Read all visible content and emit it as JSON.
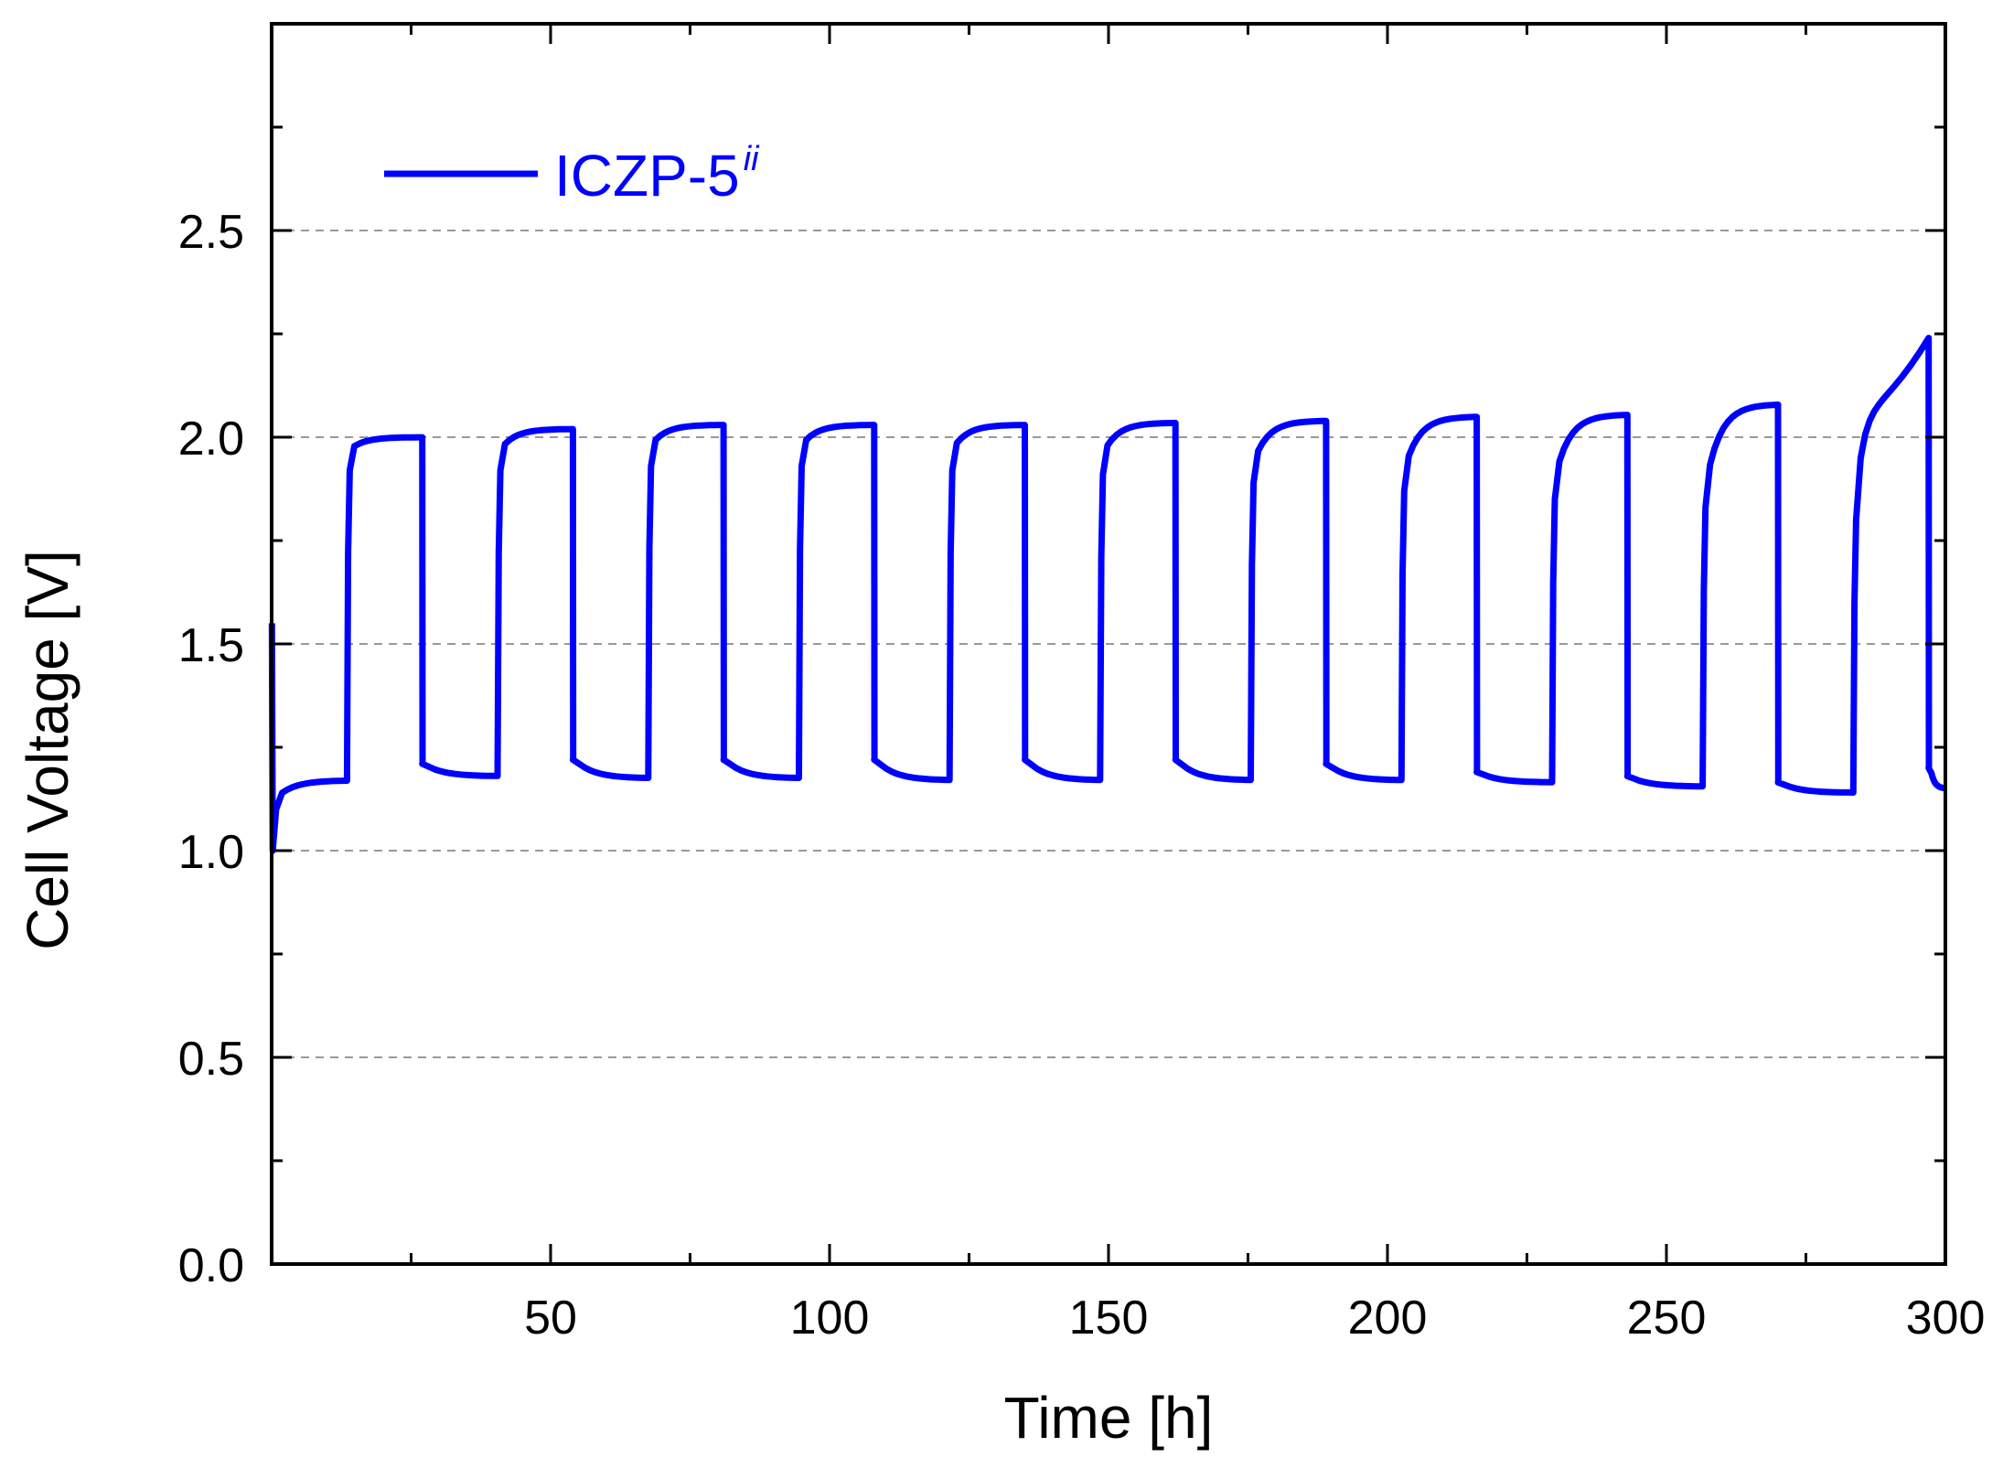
{
  "chart_data": {
    "type": "line",
    "title": "",
    "xlabel": "Time [h]",
    "ylabel": "Cell Voltage [V]",
    "xlim": [
      0,
      300
    ],
    "ylim": [
      0,
      3.0
    ],
    "x_ticks": [
      50,
      100,
      150,
      200,
      250,
      300
    ],
    "x_tick_labels": [
      "50",
      "100",
      "150",
      "200",
      "250",
      "300"
    ],
    "y_ticks": [
      0.0,
      0.5,
      1.0,
      1.5,
      2.0,
      2.5
    ],
    "y_tick_labels": [
      "0.0",
      "0.5",
      "1.0",
      "1.5",
      "2.0",
      "2.5"
    ],
    "grid": {
      "y_dashed": [
        0.5,
        1.0,
        1.5,
        2.0,
        2.5
      ]
    },
    "legend_position": "top-left",
    "series": [
      {
        "name": "ICZP-5",
        "name_superscript": "ii",
        "color": "#0000ff",
        "cycles": [
          {
            "t_start": 0,
            "t_charge": 13.5,
            "t_end": 27,
            "v_discharge_start": 1.55,
            "v_discharge_end": 1.17,
            "v_charge_start": 1.97,
            "v_charge_end": 2.0
          },
          {
            "t_start": 27,
            "t_charge": 40.5,
            "t_end": 54,
            "v_discharge_start": 1.21,
            "v_discharge_end": 1.18,
            "v_charge_start": 1.97,
            "v_charge_end": 2.02
          },
          {
            "t_start": 54,
            "t_charge": 67.5,
            "t_end": 81,
            "v_discharge_start": 1.22,
            "v_discharge_end": 1.175,
            "v_charge_start": 1.98,
            "v_charge_end": 2.03
          },
          {
            "t_start": 81,
            "t_charge": 94.5,
            "t_end": 108,
            "v_discharge_start": 1.22,
            "v_discharge_end": 1.175,
            "v_charge_start": 1.98,
            "v_charge_end": 2.03
          },
          {
            "t_start": 108,
            "t_charge": 121.5,
            "t_end": 135,
            "v_discharge_start": 1.22,
            "v_discharge_end": 1.17,
            "v_charge_start": 1.97,
            "v_charge_end": 2.03
          },
          {
            "t_start": 135,
            "t_charge": 148.5,
            "t_end": 162,
            "v_discharge_start": 1.22,
            "v_discharge_end": 1.17,
            "v_charge_start": 1.96,
            "v_charge_end": 2.035
          },
          {
            "t_start": 162,
            "t_charge": 175.5,
            "t_end": 189,
            "v_discharge_start": 1.22,
            "v_discharge_end": 1.17,
            "v_charge_start": 1.94,
            "v_charge_end": 2.04
          },
          {
            "t_start": 189,
            "t_charge": 202.5,
            "t_end": 216,
            "v_discharge_start": 1.21,
            "v_discharge_end": 1.17,
            "v_charge_start": 1.92,
            "v_charge_end": 2.05
          },
          {
            "t_start": 216,
            "t_charge": 229.5,
            "t_end": 243,
            "v_discharge_start": 1.19,
            "v_discharge_end": 1.165,
            "v_charge_start": 1.9,
            "v_charge_end": 2.055
          },
          {
            "t_start": 243,
            "t_charge": 256.5,
            "t_end": 270,
            "v_discharge_start": 1.18,
            "v_discharge_end": 1.155,
            "v_charge_start": 1.88,
            "v_charge_end": 2.08
          },
          {
            "t_start": 270,
            "t_charge": 283.5,
            "t_end": 297,
            "v_discharge_start": 1.165,
            "v_discharge_end": 1.14,
            "v_charge_start": 1.85,
            "v_charge_end": 2.24
          },
          {
            "t_start": 297,
            "t_charge": 300,
            "t_end": 300,
            "v_discharge_start": 1.2,
            "v_discharge_end": 1.15,
            "v_charge_start": 1.15,
            "v_charge_end": 1.15
          }
        ]
      }
    ]
  }
}
